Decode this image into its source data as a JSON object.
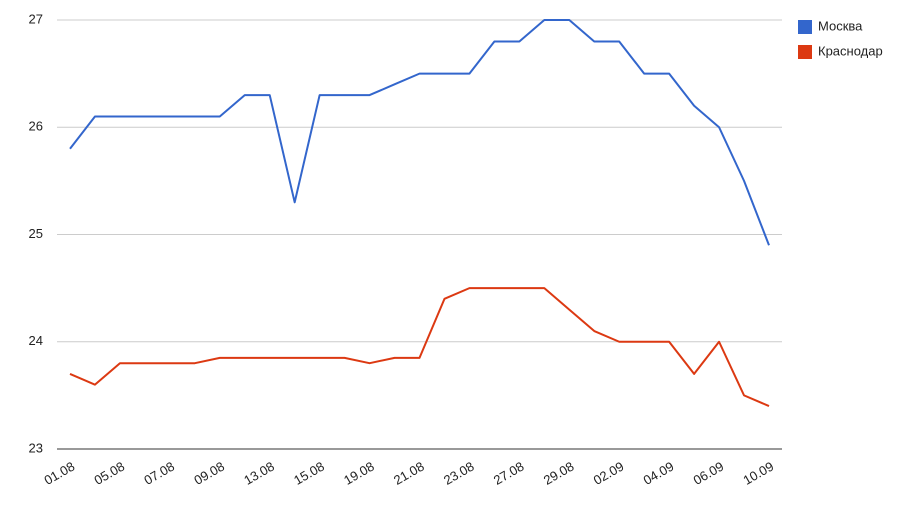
{
  "chart_data": {
    "type": "line",
    "categories": [
      "01.08",
      null,
      "05.08",
      null,
      "07.08",
      null,
      "09.08",
      null,
      "13.08",
      null,
      "15.08",
      null,
      "19.08",
      null,
      "21.08",
      null,
      "23.08",
      null,
      "27.08",
      null,
      "29.08",
      null,
      "02.09",
      null,
      "04.09",
      null,
      "06.09",
      null,
      "10.09"
    ],
    "series": [
      {
        "name": "Москва",
        "color": "#3366cc",
        "values": [
          25.8,
          26.1,
          26.1,
          26.1,
          26.1,
          26.1,
          26.1,
          26.3,
          26.3,
          25.3,
          26.3,
          26.3,
          26.3,
          26.4,
          26.5,
          26.5,
          26.5,
          26.8,
          26.8,
          27.0,
          27.0,
          26.8,
          26.8,
          26.5,
          26.5,
          26.2,
          26.0,
          25.5,
          24.9
        ]
      },
      {
        "name": "Краснодар",
        "color": "#dc3912",
        "values": [
          23.7,
          23.6,
          23.8,
          23.8,
          23.8,
          23.8,
          23.85,
          23.85,
          23.85,
          23.85,
          23.85,
          23.85,
          23.8,
          23.85,
          23.85,
          24.4,
          24.5,
          24.5,
          24.5,
          24.5,
          24.3,
          24.1,
          24.0,
          24.0,
          24.0,
          23.7,
          24.0,
          23.5,
          23.4
        ]
      }
    ],
    "ylim": [
      23,
      27
    ],
    "yticks": [
      23,
      24,
      25,
      26,
      27
    ],
    "grid": true,
    "legend": "right"
  }
}
